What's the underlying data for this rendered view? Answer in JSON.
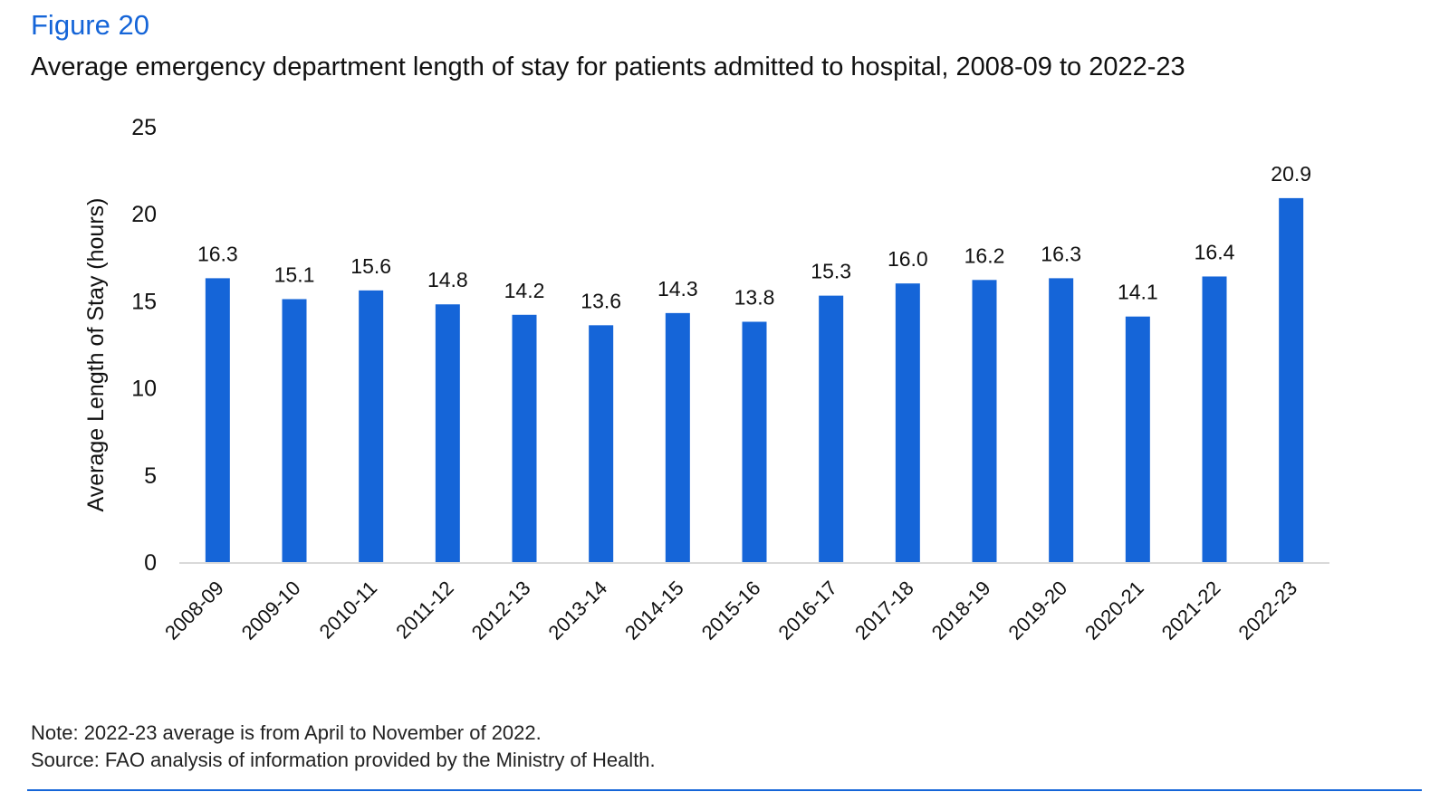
{
  "figure_label": "Figure 20",
  "title": "Average emergency department length of stay for patients admitted to hospital, 2008-09 to 2022-23",
  "notes": {
    "note": "Note: 2022-23 average is from April to November of 2022.",
    "source": "Source: FAO analysis of information provided by the Ministry of Health."
  },
  "colors": {
    "bar": "#1565d8",
    "accent": "#1565d8",
    "axis": "#d9d9d9"
  },
  "chart_data": {
    "type": "bar",
    "categories": [
      "2008-09",
      "2009-10",
      "2010-11",
      "2011-12",
      "2012-13",
      "2013-14",
      "2014-15",
      "2015-16",
      "2016-17",
      "2017-18",
      "2018-19",
      "2019-20",
      "2020-21",
      "2021-22",
      "2022-23"
    ],
    "values": [
      16.3,
      15.1,
      15.6,
      14.8,
      14.2,
      13.6,
      14.3,
      13.8,
      15.3,
      16.0,
      16.2,
      16.3,
      14.1,
      16.4,
      20.9
    ],
    "data_labels": [
      "16.3",
      "15.1",
      "15.6",
      "14.8",
      "14.2",
      "13.6",
      "14.3",
      "13.8",
      "15.3",
      "16.0",
      "16.2",
      "16.3",
      "14.1",
      "16.4",
      "20.9"
    ],
    "title": "Average emergency department length of stay for patients admitted to hospital, 2008-09 to 2022-23",
    "xlabel": "",
    "ylabel": "Average Length of Stay (hours)",
    "ylim": [
      0,
      25
    ],
    "yticks": [
      0,
      5,
      10,
      15,
      20,
      25
    ],
    "grid": false,
    "legend": "none"
  }
}
